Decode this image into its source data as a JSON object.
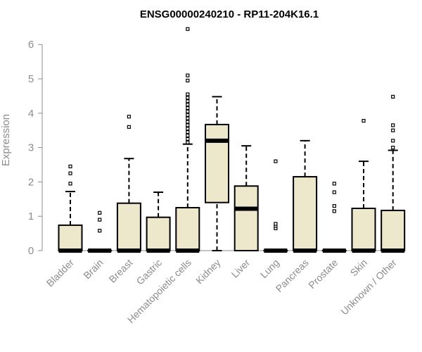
{
  "chart_data": {
    "type": "boxplot",
    "title": "ENSG00000240210 - RP11-204K16.1",
    "ylabel": "Expression",
    "xlabel": "",
    "ylim": [
      0,
      6.6
    ],
    "yticks": [
      0,
      1,
      2,
      3,
      4,
      5,
      6
    ],
    "box_fill": "#ede7cc",
    "categories": [
      "Bladder",
      "Brain",
      "Breast",
      "Gastric",
      "Hematopoietic cells",
      "Kidney",
      "Liver",
      "Lung",
      "Pancreas",
      "Prostate",
      "Skin",
      "Unknown / Other"
    ],
    "boxes": [
      {
        "category": "Bladder",
        "whisker_low": 0,
        "q1": 0,
        "median": 0,
        "q3": 0.74,
        "whisker_high": 1.72,
        "outliers": [
          1.95,
          2.25,
          2.45
        ]
      },
      {
        "category": "Brain",
        "whisker_low": 0,
        "q1": 0,
        "median": 0,
        "q3": 0,
        "whisker_high": 0,
        "outliers": [
          0.58,
          0.9,
          1.1
        ]
      },
      {
        "category": "Breast",
        "whisker_low": 0,
        "q1": 0,
        "median": 0,
        "q3": 1.38,
        "whisker_high": 2.68,
        "outliers": [
          3.6,
          3.9
        ]
      },
      {
        "category": "Gastric",
        "whisker_low": 0,
        "q1": 0,
        "median": 0,
        "q3": 0.97,
        "whisker_high": 1.7,
        "outliers": []
      },
      {
        "category": "Hematopoietic cells",
        "whisker_low": 0,
        "q1": 0,
        "median": 0,
        "q3": 1.25,
        "whisker_high": 3.1,
        "outliers": [
          3.15,
          3.25,
          3.35,
          3.45,
          3.55,
          3.65,
          3.75,
          3.85,
          3.95,
          4.05,
          4.15,
          4.25,
          4.35,
          4.45,
          4.55,
          4.95,
          5.1,
          6.45
        ]
      },
      {
        "category": "Kidney",
        "whisker_low": 0,
        "q1": 1.4,
        "median": 3.2,
        "q3": 3.67,
        "whisker_high": 4.48,
        "outliers": []
      },
      {
        "category": "Liver",
        "whisker_low": 0,
        "q1": 0,
        "median": 1.22,
        "q3": 1.88,
        "whisker_high": 3.05,
        "outliers": []
      },
      {
        "category": "Lung",
        "whisker_low": 0,
        "q1": 0,
        "median": 0,
        "q3": 0,
        "whisker_high": 0,
        "outliers": [
          0.65,
          0.72,
          0.78,
          2.6
        ]
      },
      {
        "category": "Pancreas",
        "whisker_low": 0,
        "q1": 0,
        "median": 0,
        "q3": 2.15,
        "whisker_high": 3.2,
        "outliers": []
      },
      {
        "category": "Prostate",
        "whisker_low": 0,
        "q1": 0,
        "median": 0,
        "q3": 0,
        "whisker_high": 0,
        "outliers": [
          1.15,
          1.3,
          1.7,
          1.95
        ]
      },
      {
        "category": "Skin",
        "whisker_low": 0,
        "q1": 0,
        "median": 0,
        "q3": 1.23,
        "whisker_high": 2.6,
        "outliers": [
          3.78
        ]
      },
      {
        "category": "Unknown / Other",
        "whisker_low": 0,
        "q1": 0,
        "median": 0,
        "q3": 1.17,
        "whisker_high": 2.92,
        "outliers": [
          3.0,
          3.2,
          3.5,
          3.65,
          4.48
        ]
      }
    ]
  }
}
